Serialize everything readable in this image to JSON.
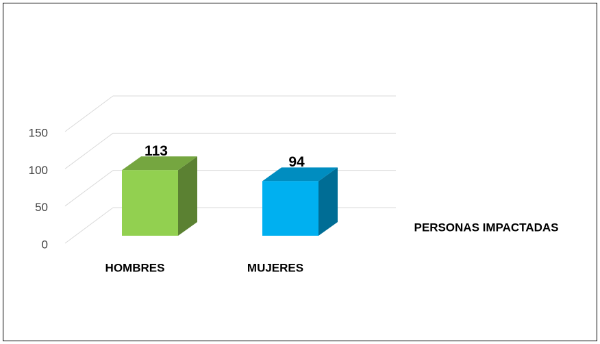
{
  "chart_data": {
    "type": "bar3d",
    "series_name": "PERSONAS IMPACTADAS",
    "categories": [
      "HOMBRES",
      "MUJERES"
    ],
    "values": [
      113,
      94
    ],
    "colors": [
      "#92d050",
      "#00b0f0"
    ],
    "ylim": [
      0,
      150
    ],
    "yticks": [
      0,
      50,
      100,
      150
    ],
    "grid": true
  }
}
